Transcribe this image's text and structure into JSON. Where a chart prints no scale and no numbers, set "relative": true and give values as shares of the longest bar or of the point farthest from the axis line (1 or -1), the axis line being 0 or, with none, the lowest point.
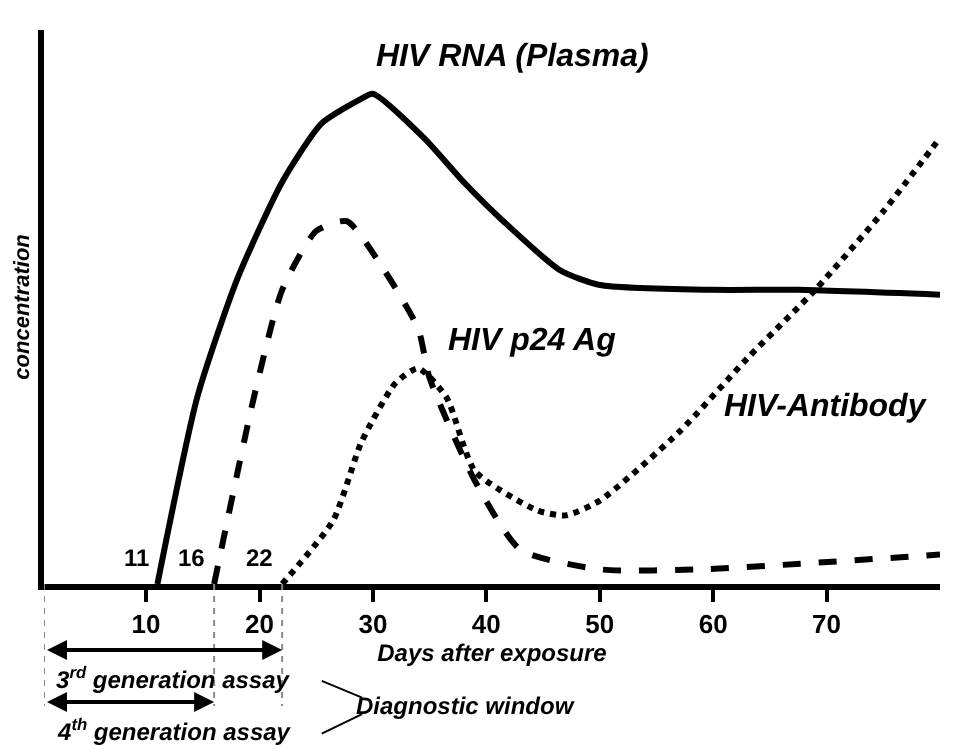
{
  "chart_data": {
    "type": "line",
    "relative": true,
    "xlabel": "Days after exposure",
    "ylabel": "concentration",
    "xlim": [
      1,
      80
    ],
    "xticks": [
      10,
      20,
      30,
      40,
      50,
      60,
      70
    ],
    "grid": false,
    "legend": false,
    "marker": "none",
    "tick_labels": "x",
    "series": [
      {
        "name": "HIV RNA (Plasma)",
        "color": "#000000",
        "line_style": "solid",
        "x": [
          11,
          14.5,
          18,
          22,
          25.5,
          29,
          30,
          34.5,
          38,
          41.5,
          46.5,
          50,
          60,
          67.5,
          80
        ],
        "values": [
          0,
          0.38,
          0.62,
          0.82,
          0.94,
          0.99,
          1,
          0.91,
          0.82,
          0.74,
          0.64,
          0.61,
          0.6,
          0.6,
          0.59
        ]
      },
      {
        "name": "HIV p24 Ag",
        "color": "#000000",
        "line_style": "dashed",
        "x": [
          16,
          19.5,
          22,
          25,
          27.7,
          31,
          34,
          35,
          39,
          43,
          50,
          59,
          80
        ],
        "values": [
          0,
          0.38,
          0.6,
          0.72,
          0.74,
          0.64,
          0.52,
          0.42,
          0.21,
          0.07,
          0.03,
          0.03,
          0.06
        ]
      },
      {
        "name": "HIV-Antibody",
        "color": "#000000",
        "line_style": "dotted",
        "x": [
          22,
          26.5,
          29,
          32,
          34,
          36.5,
          39,
          44.5,
          47,
          50,
          57,
          63,
          69,
          75,
          80
        ],
        "values": [
          0,
          0.13,
          0.29,
          0.41,
          0.44,
          0.38,
          0.23,
          0.15,
          0.14,
          0.17,
          0.31,
          0.46,
          0.6,
          0.76,
          0.91
        ]
      }
    ],
    "annotations": [
      {
        "text": "11",
        "x": 11,
        "y": 0
      },
      {
        "text": "16",
        "x": 16,
        "y": 0
      },
      {
        "text": "22",
        "x": 22,
        "y": 0
      },
      "3$^{rd}$ generation assay",
      "4$^{th}$ generation assay",
      "Diagnostic window"
    ]
  }
}
